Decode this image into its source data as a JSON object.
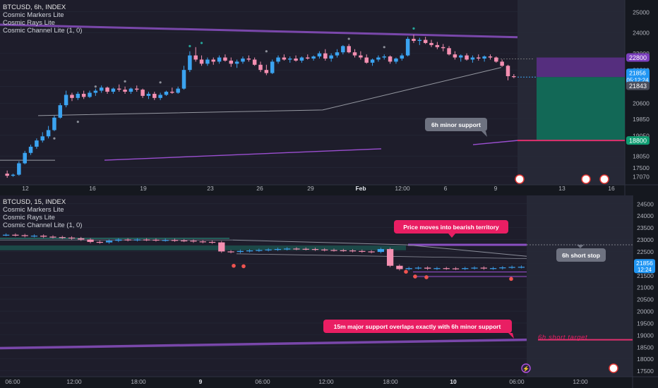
{
  "colors": {
    "bg": "#1e1d2b",
    "bg_dark": "#15181f",
    "future_bg": "#262836",
    "up": "#3ba3f0",
    "down": "#f48fb1",
    "purple": "#8a4fc1",
    "teal": "#1b9e7f",
    "pink": "#e91e63",
    "grid": "#262a38",
    "axis_text": "#b2b5be"
  },
  "top": {
    "symbol": "BTCUSD, 6h, INDEX",
    "indicators": [
      "Cosmic Markers Lite",
      "Cosmic Rays Lite",
      "Cosmic Channel Lite (1, 0)"
    ],
    "price_labels": {
      "stop": "22800",
      "last": "21856",
      "countdown": "05:12:24",
      "prev": "21843",
      "target": "18800"
    },
    "annotation": "6h minor support"
  },
  "bottom": {
    "symbol": "BTCUSD, 15, INDEX",
    "indicators": [
      "Cosmic Markers Lite",
      "Cosmic Rays Lite",
      "Cosmic Channel Lite (1, 0)"
    ],
    "price_labels": {
      "last": "21856",
      "countdown": "12:24"
    },
    "annotations": {
      "bearish": "Price moves into bearish territory",
      "stop": "6h short stop",
      "support": "15m major support overlaps exactly with 6h minor support",
      "target": "6h short target"
    }
  },
  "chart_data": [
    {
      "type": "candlestick",
      "title": "BTCUSD, 6h, INDEX",
      "x_ticks": [
        "12",
        "16",
        "19",
        "23",
        "26",
        "29",
        "Feb",
        "12:00",
        "6",
        "9",
        "13",
        "16"
      ],
      "y_ticks": [
        25000,
        24000,
        23000,
        22200,
        21400,
        20600,
        19850,
        19050,
        18050,
        17500,
        17070
      ],
      "ylim": [
        16900,
        25300
      ],
      "candles": [
        [
          17200,
          17350,
          17000,
          17100
        ],
        [
          17100,
          17200,
          17050,
          17150
        ],
        [
          17150,
          17800,
          17100,
          17700
        ],
        [
          17700,
          18300,
          17650,
          18200
        ],
        [
          18200,
          18600,
          18100,
          18500
        ],
        [
          18500,
          18900,
          18400,
          18800
        ],
        [
          18800,
          19200,
          18700,
          19000
        ],
        [
          19000,
          19500,
          18900,
          19300
        ],
        [
          19300,
          20000,
          19250,
          19900
        ],
        [
          19900,
          20600,
          19850,
          20500
        ],
        [
          20500,
          21200,
          20400,
          21000
        ],
        [
          21000,
          21100,
          20700,
          20850
        ],
        [
          20850,
          21150,
          20750,
          21050
        ],
        [
          21050,
          21200,
          20800,
          20900
        ],
        [
          20900,
          21200,
          20850,
          21100
        ],
        [
          21100,
          21300,
          20950,
          21200
        ],
        [
          21200,
          21450,
          21100,
          21350
        ],
        [
          21350,
          21400,
          21050,
          21150
        ],
        [
          21150,
          21350,
          21050,
          21300
        ],
        [
          21300,
          21500,
          21150,
          21250
        ],
        [
          21250,
          21400,
          21050,
          21150
        ],
        [
          21150,
          21350,
          21050,
          21300
        ],
        [
          21300,
          21450,
          21150,
          21250
        ],
        [
          21250,
          21300,
          20850,
          20950
        ],
        [
          20950,
          21150,
          20800,
          21050
        ],
        [
          21050,
          21150,
          20750,
          20850
        ],
        [
          20850,
          21100,
          20750,
          21000
        ],
        [
          21000,
          21200,
          20950,
          21150
        ],
        [
          21150,
          21350,
          21050,
          21100
        ],
        [
          21100,
          21400,
          21050,
          21300
        ],
        [
          21300,
          22400,
          21250,
          22200
        ],
        [
          22200,
          23100,
          22100,
          22900
        ],
        [
          22900,
          23300,
          22600,
          22700
        ],
        [
          22700,
          22900,
          22400,
          22500
        ],
        [
          22500,
          22800,
          22400,
          22700
        ],
        [
          22700,
          22800,
          22450,
          22600
        ],
        [
          22600,
          22900,
          22500,
          22800
        ],
        [
          22800,
          22950,
          22600,
          22650
        ],
        [
          22650,
          22800,
          22350,
          22500
        ],
        [
          22500,
          22700,
          22300,
          22600
        ],
        [
          22600,
          22850,
          22500,
          22750
        ],
        [
          22750,
          22900,
          22600,
          22700
        ],
        [
          22700,
          22800,
          22400,
          22450
        ],
        [
          22450,
          22600,
          22100,
          22200
        ],
        [
          22200,
          22450,
          21950,
          22050
        ],
        [
          22050,
          22700,
          22000,
          22600
        ],
        [
          22600,
          22900,
          22500,
          22800
        ],
        [
          22800,
          22950,
          22650,
          22700
        ],
        [
          22700,
          22850,
          22550,
          22750
        ],
        [
          22750,
          22900,
          22600,
          22650
        ],
        [
          22650,
          22850,
          22550,
          22800
        ],
        [
          22800,
          22950,
          22700,
          22750
        ],
        [
          22750,
          22900,
          22650,
          22850
        ],
        [
          22850,
          23100,
          22750,
          23000
        ],
        [
          23000,
          23200,
          22650,
          22750
        ],
        [
          22750,
          23000,
          22600,
          22900
        ],
        [
          22900,
          23200,
          22800,
          23050
        ],
        [
          23050,
          23400,
          22950,
          23350
        ],
        [
          23350,
          23450,
          23000,
          23050
        ],
        [
          23050,
          23200,
          22800,
          22900
        ],
        [
          22900,
          23100,
          22700,
          22800
        ],
        [
          22800,
          22950,
          22500,
          22550
        ],
        [
          22550,
          22750,
          22400,
          22700
        ],
        [
          22700,
          22900,
          22600,
          22800
        ],
        [
          22800,
          22950,
          22700,
          22850
        ],
        [
          22850,
          22900,
          22500,
          22600
        ],
        [
          22600,
          22800,
          22500,
          22750
        ],
        [
          22750,
          23000,
          22650,
          22900
        ],
        [
          22900,
          23800,
          22850,
          23700
        ],
        [
          23700,
          23900,
          23500,
          23600
        ],
        [
          23600,
          23750,
          23400,
          23650
        ],
        [
          23650,
          23800,
          23450,
          23500
        ],
        [
          23500,
          23650,
          23300,
          23400
        ],
        [
          23400,
          23550,
          23200,
          23300
        ],
        [
          23300,
          23450,
          23100,
          23250
        ],
        [
          23250,
          23350,
          22900,
          22950
        ],
        [
          22950,
          23100,
          22700,
          22800
        ],
        [
          22800,
          22950,
          22600,
          22900
        ],
        [
          22900,
          23000,
          22650,
          22700
        ],
        [
          22700,
          22900,
          22550,
          22800
        ],
        [
          22800,
          22950,
          22650,
          22750
        ],
        [
          22750,
          22900,
          22600,
          22850
        ],
        [
          22850,
          22950,
          22700,
          22800
        ],
        [
          22800,
          22850,
          22550,
          22600
        ],
        [
          22600,
          22700,
          22350,
          22400
        ],
        [
          22400,
          22450,
          21700,
          21900
        ],
        [
          21900,
          22000,
          21800,
          21856
        ]
      ]
    },
    {
      "type": "line",
      "title": "BTCUSD, 15, INDEX",
      "x_ticks": [
        "06:00",
        "12:00",
        "18:00",
        "9",
        "06:00",
        "12:00",
        "18:00",
        "10",
        "06:00",
        "12:00"
      ],
      "y_ticks": [
        24500,
        24000,
        23500,
        23000,
        22500,
        22000,
        21500,
        21000,
        20500,
        20000,
        19500,
        19000,
        18500,
        18000,
        17500
      ],
      "ylim": [
        17400,
        24700
      ],
      "series": [
        {
          "values": [
            23200,
            23180,
            23150,
            23160,
            23120,
            23100,
            23080,
            23050,
            23000,
            22900,
            22880,
            22950,
            23000,
            22980,
            23000,
            22990,
            22970,
            22980,
            22960,
            22950,
            22920,
            22900,
            22880,
            22500,
            22480,
            22520,
            22540,
            22560,
            22580,
            22600,
            22620,
            22610,
            22600,
            22580,
            22560,
            22550,
            22540,
            22520,
            22500,
            22480,
            22600,
            21900,
            21760,
            21800,
            21820,
            21780,
            21800,
            21790,
            21780,
            21800,
            21820,
            21790,
            21800,
            21830,
            21850,
            21856
          ]
        }
      ]
    }
  ]
}
